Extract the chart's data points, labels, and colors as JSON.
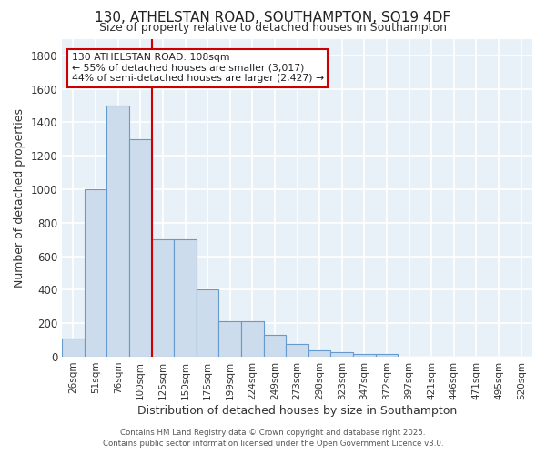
{
  "title_line1": "130, ATHELSTAN ROAD, SOUTHAMPTON, SO19 4DF",
  "title_line2": "Size of property relative to detached houses in Southampton",
  "xlabel": "Distribution of detached houses by size in Southampton",
  "ylabel": "Number of detached properties",
  "categories": [
    "26sqm",
    "51sqm",
    "76sqm",
    "100sqm",
    "125sqm",
    "150sqm",
    "175sqm",
    "199sqm",
    "224sqm",
    "249sqm",
    "273sqm",
    "298sqm",
    "323sqm",
    "347sqm",
    "372sqm",
    "397sqm",
    "421sqm",
    "446sqm",
    "471sqm",
    "495sqm",
    "520sqm"
  ],
  "values": [
    110,
    1000,
    1500,
    1300,
    700,
    700,
    400,
    210,
    210,
    130,
    75,
    40,
    25,
    18,
    15,
    0,
    0,
    0,
    0,
    0,
    0
  ],
  "bar_color": "#ccdcec",
  "bar_edge_color": "#6699cc",
  "background_color": "#ffffff",
  "plot_bg_color": "#e8f0f8",
  "grid_color": "#ffffff",
  "red_line_x": 3,
  "red_line_color": "#cc0000",
  "annotation_text": "130 ATHELSTAN ROAD: 108sqm\n← 55% of detached houses are smaller (3,017)\n44% of semi-detached houses are larger (2,427) →",
  "annotation_box_color": "#ffffff",
  "annotation_box_edge": "#cc0000",
  "ylim": [
    0,
    1900
  ],
  "yticks": [
    0,
    200,
    400,
    600,
    800,
    1000,
    1200,
    1400,
    1600,
    1800
  ],
  "footer_line1": "Contains HM Land Registry data © Crown copyright and database right 2025.",
  "footer_line2": "Contains public sector information licensed under the Open Government Licence v3.0."
}
